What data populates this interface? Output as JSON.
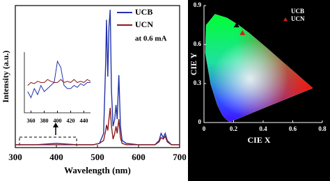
{
  "chart_data": [
    {
      "type": "line",
      "xlabel": "Wavelength (nm)",
      "ylabel": "Intensity (a.u.)",
      "annotation": "at 0.6 mA",
      "x": [
        300,
        350,
        400,
        450,
        490,
        505,
        515,
        520,
        522,
        525,
        528,
        531,
        534,
        538,
        542,
        545,
        548,
        552,
        556,
        560,
        570,
        600,
        640,
        650,
        655,
        660,
        665,
        670,
        680,
        700
      ],
      "xlim": [
        300,
        700
      ],
      "xticks": [
        300,
        400,
        500,
        600,
        700
      ],
      "ylim": [
        0,
        1
      ],
      "series": [
        {
          "name": "UCB",
          "color": "#2233aa",
          "values": [
            0.02,
            0.02,
            0.03,
            0.02,
            0.02,
            0.03,
            0.1,
            0.6,
            0.9,
            0.5,
            0.85,
            0.97,
            0.4,
            0.15,
            0.2,
            0.3,
            0.2,
            0.51,
            0.15,
            0.05,
            0.03,
            0.02,
            0.02,
            0.05,
            0.1,
            0.07,
            0.1,
            0.05,
            0.02,
            0.02
          ]
        },
        {
          "name": "UCN",
          "color": "#8b1a1a",
          "values": [
            0.02,
            0.02,
            0.02,
            0.02,
            0.02,
            0.03,
            0.05,
            0.12,
            0.16,
            0.12,
            0.2,
            0.28,
            0.15,
            0.06,
            0.1,
            0.15,
            0.1,
            0.2,
            0.07,
            0.03,
            0.02,
            0.02,
            0.02,
            0.04,
            0.07,
            0.06,
            0.08,
            0.04,
            0.02,
            0.02
          ]
        }
      ]
    },
    {
      "type": "line",
      "x": [
        355,
        360,
        365,
        370,
        375,
        380,
        385,
        390,
        395,
        400,
        405,
        410,
        415,
        420,
        425,
        430,
        435,
        440,
        445,
        450
      ],
      "xlim": [
        350,
        450
      ],
      "xticks": [
        360,
        380,
        400,
        420,
        440
      ],
      "ylim": [
        0,
        1
      ],
      "series": [
        {
          "color": "#2233aa",
          "values": [
            0.35,
            0.25,
            0.4,
            0.3,
            0.45,
            0.35,
            0.4,
            0.45,
            0.5,
            0.85,
            0.75,
            0.45,
            0.4,
            0.4,
            0.45,
            0.42,
            0.48,
            0.45,
            0.5,
            0.5
          ]
        },
        {
          "color": "#8b1a1a",
          "values": [
            0.45,
            0.5,
            0.48,
            0.52,
            0.5,
            0.5,
            0.55,
            0.52,
            0.5,
            0.5,
            0.55,
            0.5,
            0.52,
            0.5,
            0.55,
            0.5,
            0.52,
            0.5,
            0.55,
            0.52
          ]
        }
      ]
    },
    {
      "type": "scatter",
      "xlabel": "CIE X",
      "ylabel": "CIE Y",
      "xlim": [
        0,
        0.8
      ],
      "xticks": [
        0,
        0.2,
        0.4,
        0.6,
        0.8
      ],
      "ylim": [
        0,
        0.9
      ],
      "yticks": [
        0,
        0.3,
        0.6,
        0.9
      ],
      "series": [
        {
          "name": "UCB",
          "color": "#000000",
          "x": [
            0.22
          ],
          "values": [
            0.75
          ]
        },
        {
          "name": "UCN",
          "color": "#cc2222",
          "x": [
            0.26
          ],
          "values": [
            0.69
          ]
        }
      ]
    }
  ]
}
